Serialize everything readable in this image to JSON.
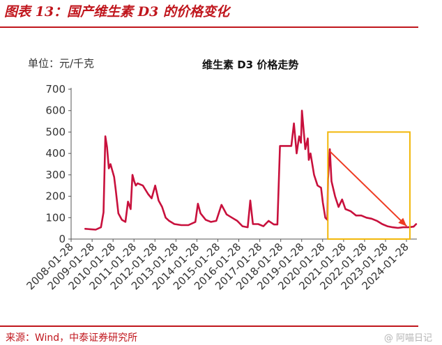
{
  "header": {
    "figure_title": "图表 13：国产维生素 D3 的价格变化"
  },
  "footer": {
    "source": "来源：Wind，中泰证券研究所",
    "watermark": "@ 阿喵日记"
  },
  "colors": {
    "accent": "#c0161d",
    "line": "#c8103c",
    "highlight_box": "#f2b70a",
    "arrow": "#ee3b22"
  },
  "chart_data": {
    "type": "line",
    "title": "维生素 D3 价格走势",
    "unit_label": "单位：元/千克",
    "ylim": [
      0,
      700
    ],
    "yticks": [
      0,
      100,
      200,
      300,
      400,
      500,
      600,
      700
    ],
    "xlim": [
      "2008-01-28",
      "2024-07-28"
    ],
    "xticks": [
      "2008-01-28",
      "2009-01-28",
      "2010-01-28",
      "2011-01-28",
      "2012-01-28",
      "2013-01-28",
      "2014-01-28",
      "2015-01-28",
      "2016-01-28",
      "2017-01-28",
      "2018-01-28",
      "2019-01-28",
      "2020-01-28",
      "2021-01-28",
      "2022-01-28",
      "2023-01-28",
      "2024-01-28"
    ],
    "grid": false,
    "legend": "none",
    "annotation": {
      "type": "highlight_box_with_arrow",
      "x_range": [
        "2020-04-28",
        "2024-03-28"
      ],
      "y_range": [
        0,
        500
      ],
      "arrow_from": [
        "2020-06-01",
        410
      ],
      "arrow_to": [
        "2024-02-01",
        60
      ]
    },
    "series": [
      {
        "x": [
          "2008-10-01",
          "2009-01-01",
          "2009-04-01",
          "2009-07-01",
          "2009-08-15",
          "2009-09-15",
          "2009-10-15",
          "2009-11-15",
          "2009-12-15",
          "2010-01-15",
          "2010-02-15",
          "2010-03-15",
          "2010-05-01",
          "2010-07-01",
          "2010-09-01",
          "2010-10-15",
          "2010-12-01",
          "2011-01-01",
          "2011-02-01",
          "2011-03-01",
          "2011-04-01",
          "2011-07-01",
          "2011-10-01",
          "2011-12-01",
          "2012-02-01",
          "2012-04-01",
          "2012-06-01",
          "2012-08-01",
          "2012-10-01",
          "2013-01-01",
          "2013-05-01",
          "2013-09-01",
          "2014-01-01",
          "2014-02-15",
          "2014-04-01",
          "2014-07-01",
          "2014-10-01",
          "2015-01-01",
          "2015-04-01",
          "2015-07-01",
          "2015-10-01",
          "2016-01-01",
          "2016-04-01",
          "2016-07-01",
          "2016-08-15",
          "2016-10-01",
          "2017-01-01",
          "2017-04-01",
          "2017-07-01",
          "2017-10-01",
          "2017-12-01",
          "2018-01-15",
          "2018-05-01",
          "2018-08-01",
          "2018-09-15",
          "2018-11-01",
          "2018-12-15",
          "2019-01-15",
          "2019-02-01",
          "2019-04-01",
          "2019-05-15",
          "2019-06-01",
          "2019-07-01",
          "2019-09-01",
          "2019-11-01",
          "2020-01-01",
          "2020-02-01",
          "2020-03-15",
          "2020-04-20",
          "2020-05-01",
          "2020-06-01",
          "2020-07-01",
          "2020-09-01",
          "2020-11-01",
          "2021-01-01",
          "2021-03-01",
          "2021-06-01",
          "2021-09-01",
          "2021-12-01",
          "2022-03-01",
          "2022-06-01",
          "2022-09-01",
          "2022-12-01",
          "2023-03-01",
          "2023-06-01",
          "2023-09-01",
          "2023-12-01",
          "2024-03-01",
          "2024-06-01",
          "2024-07-15"
        ],
        "values": [
          48,
          46,
          44,
          55,
          125,
          480,
          430,
          330,
          350,
          320,
          290,
          230,
          120,
          90,
          80,
          175,
          140,
          300,
          270,
          250,
          260,
          250,
          210,
          190,
          250,
          180,
          150,
          100,
          85,
          70,
          65,
          65,
          80,
          165,
          120,
          90,
          80,
          85,
          160,
          115,
          100,
          85,
          60,
          55,
          180,
          70,
          70,
          60,
          85,
          68,
          68,
          435,
          435,
          435,
          540,
          400,
          480,
          450,
          600,
          420,
          470,
          370,
          400,
          300,
          250,
          240,
          170,
          100,
          90,
          280,
          420,
          270,
          200,
          150,
          185,
          140,
          130,
          110,
          110,
          100,
          95,
          85,
          70,
          60,
          55,
          52,
          55,
          55,
          58,
          70
        ]
      }
    ]
  }
}
